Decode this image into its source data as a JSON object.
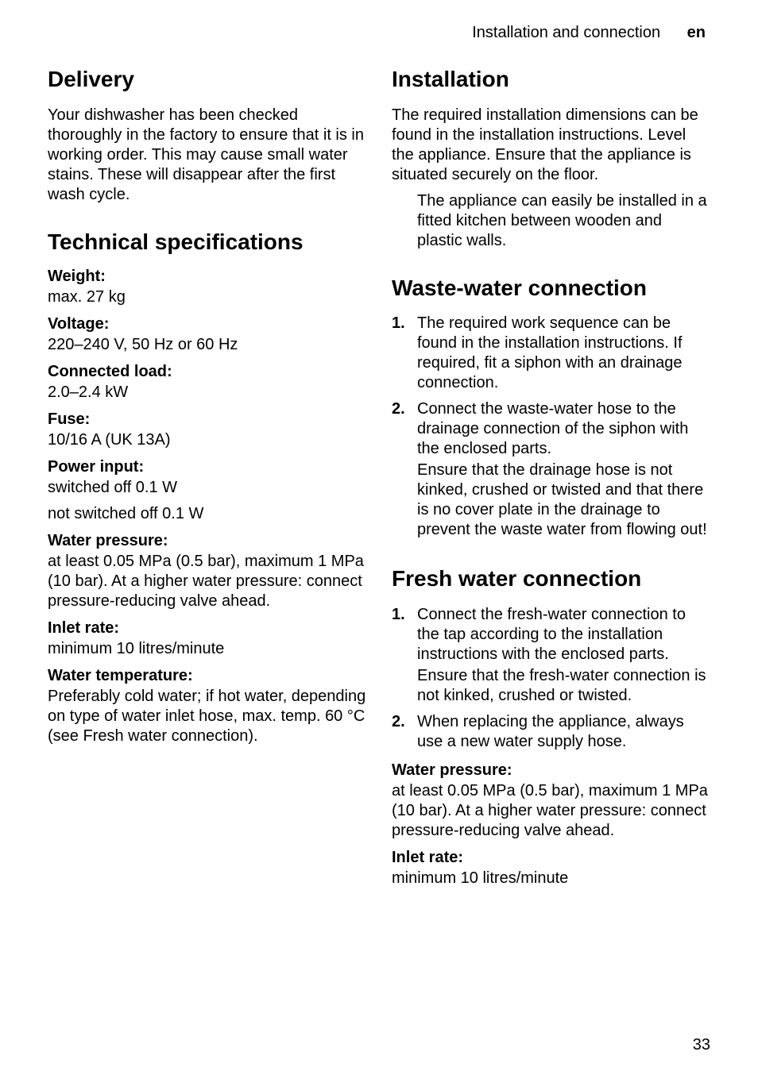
{
  "header": {
    "section_name": "Installation and connection",
    "lang": "en"
  },
  "page_number": "33",
  "left": {
    "delivery": {
      "title": "Delivery",
      "body": "Your dishwasher has been checked thoroughly in the factory to ensure that it is in working order. This may cause small water stains. These will disappear after the first wash cycle."
    },
    "tech": {
      "title": "Technical specifications",
      "items": [
        {
          "label": "Weight:",
          "value": "max. 27 kg"
        },
        {
          "label": "Voltage:",
          "value": "220–240 V, 50 Hz or 60 Hz"
        },
        {
          "label": "Connected load:",
          "value": "2.0–2.4 kW"
        },
        {
          "label": "Fuse:",
          "value": "10/16 A (UK 13A)"
        },
        {
          "label": "Power input:",
          "value_a": "switched off 0.1 W",
          "value_b": "not switched off 0.1 W"
        },
        {
          "label": "Water pressure:",
          "value": "at least 0.05 MPa (0.5 bar), maximum 1 MPa (10 bar). At a higher water pressure: connect pressure-reducing valve ahead."
        },
        {
          "label": "Inlet rate:",
          "value": "minimum 10 litres/minute"
        },
        {
          "label": "Water temperature:",
          "value": "Preferably cold water; if hot water, depending on type of water inlet hose, max. temp. 60 °C (see Fresh water connection)."
        }
      ]
    }
  },
  "right": {
    "installation": {
      "title": "Installation",
      "body": "The required installation dimensions can be found in the installation instructions. Level the appliance. Ensure that the appliance is situated securely on the floor.",
      "note": "The appliance can easily be installed in a fitted kitchen between wooden and plastic walls."
    },
    "waste": {
      "title": "Waste-water connection",
      "items": [
        {
          "num": "1",
          "p1": "The required work sequence can be found in the installation instructions. If required, fit a siphon with an drainage connection."
        },
        {
          "num": "2",
          "p1": "Connect the waste-water hose to the drainage connection of the siphon with the enclosed parts.",
          "p2": "Ensure that the drainage hose is not kinked, crushed or twisted and that there is no cover plate in the drainage to prevent the waste water from flowing out!"
        }
      ]
    },
    "fresh": {
      "title": "Fresh water connection",
      "items": [
        {
          "num": "1",
          "p1": "Connect the fresh-water connection to the tap according to the installation instructions with the enclosed parts.",
          "p2": "Ensure that the fresh-water connection is not kinked, crushed or twisted."
        },
        {
          "num": "2",
          "p1": "When replacing the appliance, always use a new water supply hose."
        }
      ],
      "after": [
        {
          "label": "Water pressure:",
          "value": "at least 0.05 MPa (0.5 bar), maximum 1 MPa (10 bar). At a higher water pressure: connect pressure-reducing valve ahead."
        },
        {
          "label": "Inlet rate:",
          "value": "minimum 10 litres/minute"
        }
      ]
    }
  }
}
